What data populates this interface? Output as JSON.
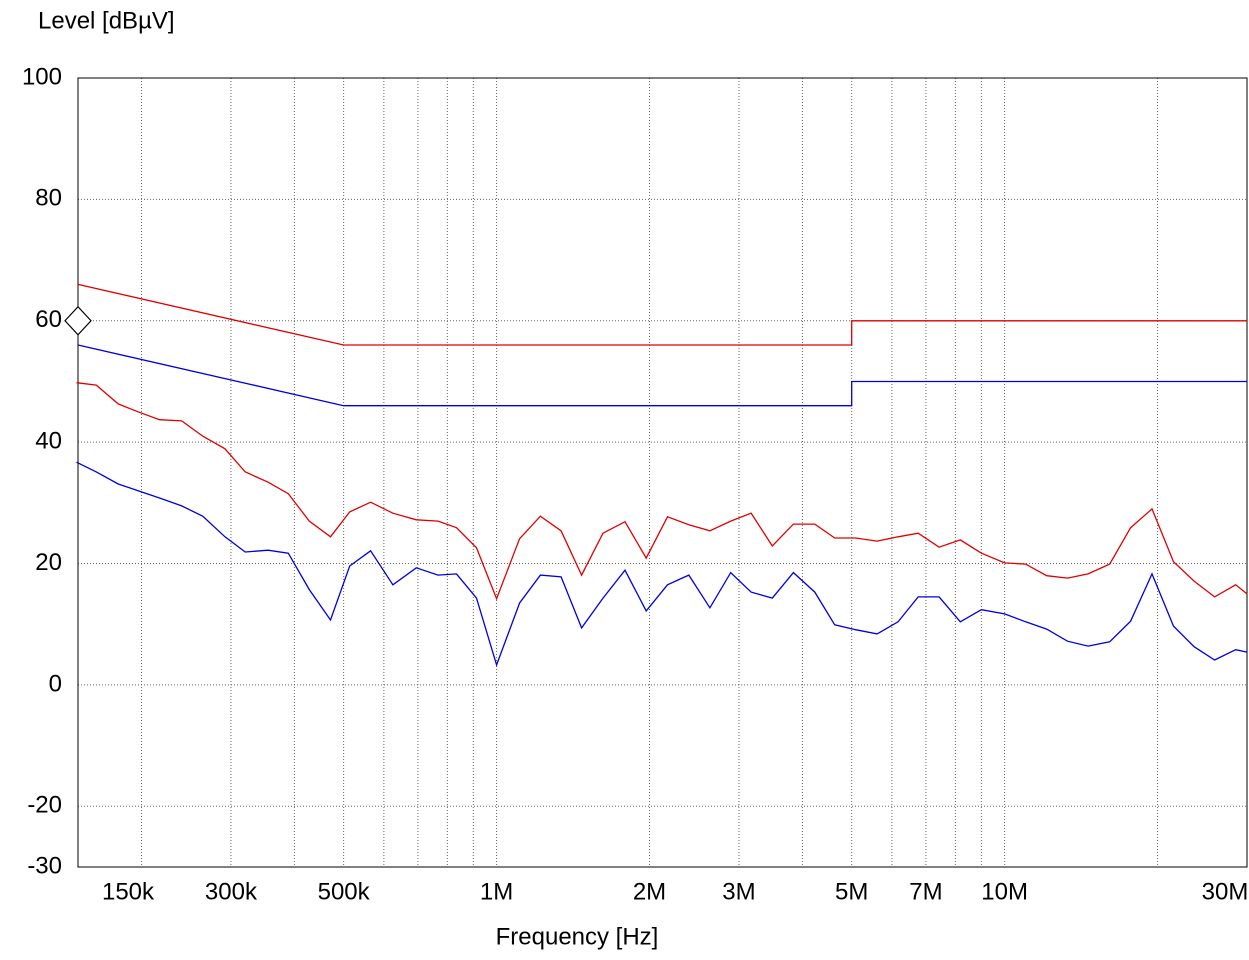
{
  "chart_data": {
    "type": "line",
    "xlabel": "Frequency [Hz]",
    "ylabel": "Level [dBµV]",
    "xscale": "log",
    "xlim": [
      150000,
      30000000
    ],
    "ylim": [
      -30,
      100
    ],
    "xticks": [
      {
        "value": 150000,
        "label": "150k"
      },
      {
        "value": 300000,
        "label": "300k"
      },
      {
        "value": 500000,
        "label": "500k"
      },
      {
        "value": 1000000,
        "label": "1M"
      },
      {
        "value": 2000000,
        "label": "2M"
      },
      {
        "value": 3000000,
        "label": "3M"
      },
      {
        "value": 5000000,
        "label": "5M"
      },
      {
        "value": 7000000,
        "label": "7M"
      },
      {
        "value": 10000000,
        "label": "10M"
      },
      {
        "value": 30000000,
        "label": "30M"
      }
    ],
    "xgrid": [
      200000,
      400000,
      600000,
      700000,
      800000,
      900000,
      4000000,
      6000000,
      8000000,
      9000000,
      20000000
    ],
    "yticks": [
      100,
      80,
      60,
      40,
      20,
      0,
      -20,
      -30
    ],
    "grid": true,
    "marker": 60,
    "series": [
      {
        "color": "#e00000",
        "x": [
          150000,
          500000,
          5000000,
          5000000,
          30000000
        ],
        "values": [
          66,
          56,
          56,
          60,
          60
        ]
      },
      {
        "color": "#0000e0",
        "x": [
          150000,
          500000,
          5000000,
          5000000,
          30000000
        ],
        "values": [
          56,
          46,
          46,
          50,
          50
        ]
      },
      {
        "color": "#e00000",
        "x": [
          149000,
          163000,
          180000,
          197000,
          217000,
          240000,
          264000,
          292000,
          320000,
          355000,
          389000,
          428000,
          471000,
          514000,
          565000,
          625000,
          695000,
          767000,
          834000,
          913000,
          1000000,
          1110000,
          1220000,
          1340000,
          1470000,
          1620000,
          1790000,
          1970000,
          2170000,
          2390000,
          2630000,
          2890000,
          3170000,
          3490000,
          3840000,
          4230000,
          4630000,
          5090000,
          5610000,
          6170000,
          6760000,
          7430000,
          8180000,
          9000000,
          10000000,
          11000000,
          12100000,
          13300000,
          14600000,
          16100000,
          17700000,
          19500000,
          21500000,
          23600000,
          25900000,
          28500000,
          30000000
        ],
        "values": [
          49.8,
          49.4,
          46.3,
          45.0,
          43.7,
          43.5,
          41.0,
          38.9,
          35.1,
          33.4,
          31.5,
          27.0,
          24.4,
          28.5,
          30.1,
          28.3,
          27.2,
          27.0,
          25.9,
          22.6,
          14.2,
          24.1,
          27.8,
          25.4,
          18.1,
          25.0,
          26.9,
          20.9,
          27.7,
          26.4,
          25.4,
          27.0,
          28.3,
          22.9,
          26.5,
          26.5,
          24.2,
          24.2,
          23.7,
          24.4,
          25.0,
          22.7,
          23.9,
          21.7,
          20.1,
          19.9,
          18.0,
          17.6,
          18.3,
          19.9,
          25.9,
          29.0,
          20.3,
          17.1,
          14.5,
          16.5,
          15.0
        ]
      },
      {
        "color": "#0000e0",
        "x": [
          149000,
          163000,
          180000,
          197000,
          217000,
          240000,
          264000,
          292000,
          320000,
          355000,
          389000,
          428000,
          471000,
          514000,
          565000,
          625000,
          695000,
          767000,
          834000,
          913000,
          1000000,
          1110000,
          1220000,
          1340000,
          1470000,
          1620000,
          1790000,
          1970000,
          2170000,
          2390000,
          2630000,
          2890000,
          3170000,
          3490000,
          3840000,
          4230000,
          4630000,
          5090000,
          5610000,
          6170000,
          6760000,
          7430000,
          8180000,
          9000000,
          10000000,
          11000000,
          12100000,
          13300000,
          14600000,
          16100000,
          17700000,
          19500000,
          21500000,
          23600000,
          25900000,
          28500000,
          30000000
        ],
        "values": [
          36.7,
          35.1,
          33.1,
          32.0,
          30.8,
          29.5,
          27.8,
          24.4,
          21.9,
          22.2,
          21.7,
          15.7,
          10.7,
          19.6,
          22.1,
          16.5,
          19.3,
          18.1,
          18.3,
          14.3,
          3.3,
          13.5,
          18.1,
          17.8,
          9.4,
          14.3,
          18.9,
          12.2,
          16.5,
          18.1,
          12.7,
          18.5,
          15.3,
          14.3,
          18.5,
          15.3,
          9.9,
          9.1,
          8.4,
          10.4,
          14.5,
          14.5,
          10.4,
          12.4,
          11.7,
          10.4,
          9.2,
          7.2,
          6.4,
          7.1,
          10.5,
          18.3,
          9.7,
          6.3,
          4.1,
          5.8,
          5.4
        ]
      }
    ]
  }
}
